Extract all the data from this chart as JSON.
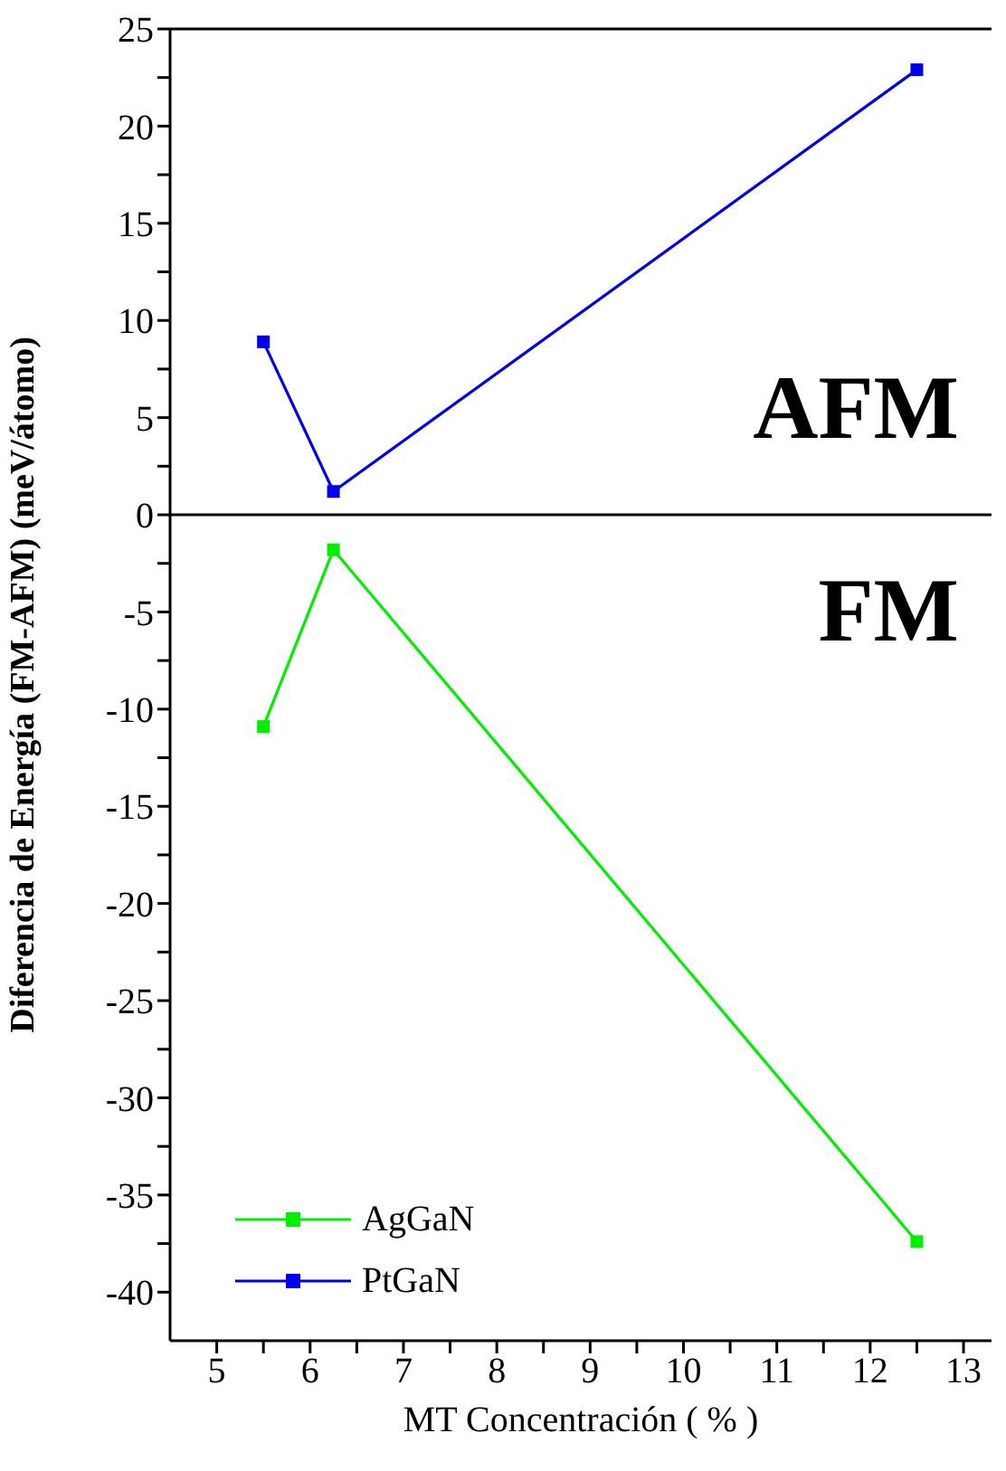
{
  "chart_data": {
    "type": "line",
    "xlabel": "MT Concentración ( % )",
    "ylabel": "Diferencia de Energía (FM-AFM) (meV/átomo)",
    "xlim": [
      4.5,
      13.3
    ],
    "xticks": [
      5,
      {
        "value": 5.5,
        "label": null
      },
      6,
      {
        "value": 6.5,
        "label": null
      },
      7,
      {
        "value": 7.5,
        "label": null
      },
      8,
      {
        "value": 8.5,
        "label": null
      },
      9,
      {
        "value": 9.5,
        "label": null
      },
      10,
      {
        "value": 10.5,
        "label": null
      },
      11,
      {
        "value": 11.5,
        "label": null
      },
      12,
      {
        "value": 12.5,
        "label": null
      },
      13
    ],
    "ylim": [
      -42.5,
      25
    ],
    "yticks": [
      -40,
      {
        "value": -37.5,
        "label": null
      },
      -35,
      {
        "value": -32.5,
        "label": null
      },
      -30,
      {
        "value": -27.5,
        "label": null
      },
      -25,
      {
        "value": -22.5,
        "label": null
      },
      -20,
      {
        "value": -17.5,
        "label": null
      },
      -15,
      {
        "value": -12.5,
        "label": null
      },
      -10,
      {
        "value": -7.5,
        "label": null
      },
      -5,
      {
        "value": -2.5,
        "label": null
      },
      0,
      {
        "value": 2.5,
        "label": null
      },
      5,
      {
        "value": 7.5,
        "label": null
      },
      10,
      {
        "value": 12.5,
        "label": null
      },
      15,
      {
        "value": 17.5,
        "label": null
      },
      20,
      {
        "value": 22.5,
        "label": null
      },
      25
    ],
    "x": [
      5.5,
      6.25,
      12.5
    ],
    "series": [
      {
        "name": "AgGaN",
        "color": "#00ee00",
        "values": [
          -10.9,
          -1.8,
          -37.4
        ]
      },
      {
        "name": "PtGaN",
        "color": "#0000ee",
        "values": [
          8.9,
          1.2,
          22.9
        ]
      }
    ],
    "ref_lines": [
      {
        "axis": "y",
        "value": 0,
        "color": "#000000"
      }
    ],
    "annotations": [
      "AFM",
      "FM"
    ],
    "marker": "square",
    "line_style": "solid",
    "grid": false,
    "legend": "bottom left"
  }
}
